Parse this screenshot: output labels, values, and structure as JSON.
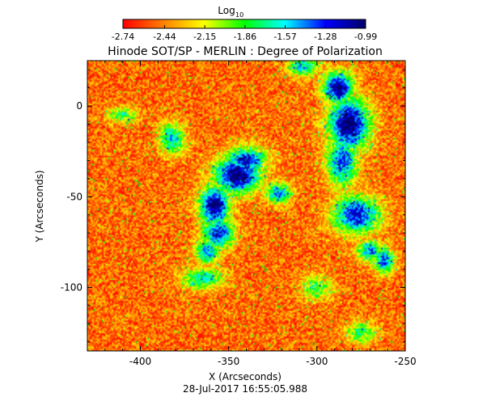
{
  "chart_data": {
    "type": "heatmap",
    "title": "Hinode SOT/SP - MERLIN : Degree of Polarization",
    "xlabel": "X (Arcseconds)",
    "ylabel": "Y (Arcseconds)",
    "xlim": [
      -430,
      -250
    ],
    "ylim": [
      -135,
      25
    ],
    "x_ticks": [
      -400,
      -350,
      -300,
      -250
    ],
    "x_tick_labels": [
      "-400",
      "-350",
      "-300",
      "-250"
    ],
    "y_ticks": [
      0,
      -50,
      -100
    ],
    "y_tick_labels": [
      "0",
      "-50",
      "-100"
    ],
    "colorbar": {
      "title_main": "Log",
      "title_sub": "10",
      "ticks": [
        -2.74,
        -2.44,
        -2.15,
        -1.86,
        -1.57,
        -1.28,
        -0.99
      ],
      "tick_labels": [
        "-2.74",
        "-2.44",
        "-2.15",
        "-1.86",
        "-1.57",
        "-1.28",
        "-0.99"
      ],
      "colormap": [
        "#ff0000",
        "#ff8000",
        "#ffff00",
        "#00ff00",
        "#00ffff",
        "#0000ff",
        "#000066"
      ]
    },
    "timestamp": "28-Jul-2017 16:55:05.988",
    "background_log": -2.74,
    "features": [
      {
        "x": -345,
        "y": -38,
        "sx": 9,
        "sy": 7,
        "level": 1.0
      },
      {
        "x": -340,
        "y": -30,
        "sx": 8,
        "sy": 5,
        "level": 0.85
      },
      {
        "x": -358,
        "y": -55,
        "sx": 6,
        "sy": 8,
        "level": 0.95
      },
      {
        "x": -356,
        "y": -70,
        "sx": 6,
        "sy": 6,
        "level": 0.8
      },
      {
        "x": -362,
        "y": -80,
        "sx": 5,
        "sy": 5,
        "level": 0.65
      },
      {
        "x": -365,
        "y": -95,
        "sx": 8,
        "sy": 4,
        "level": 0.55
      },
      {
        "x": -382,
        "y": -18,
        "sx": 5,
        "sy": 6,
        "level": 0.6
      },
      {
        "x": -288,
        "y": 10,
        "sx": 6,
        "sy": 6,
        "level": 0.95
      },
      {
        "x": -282,
        "y": -10,
        "sx": 8,
        "sy": 10,
        "level": 1.0
      },
      {
        "x": -286,
        "y": -30,
        "sx": 6,
        "sy": 10,
        "level": 0.75
      },
      {
        "x": -278,
        "y": -60,
        "sx": 9,
        "sy": 7,
        "level": 0.85
      },
      {
        "x": -270,
        "y": -80,
        "sx": 5,
        "sy": 4,
        "level": 0.7
      },
      {
        "x": -308,
        "y": 22,
        "sx": 6,
        "sy": 4,
        "level": 0.6
      },
      {
        "x": -322,
        "y": -48,
        "sx": 5,
        "sy": 4,
        "level": 0.7
      },
      {
        "x": -262,
        "y": -85,
        "sx": 4,
        "sy": 5,
        "level": 0.75
      },
      {
        "x": -410,
        "y": -5,
        "sx": 6,
        "sy": 3,
        "level": 0.45
      },
      {
        "x": -300,
        "y": -100,
        "sx": 6,
        "sy": 5,
        "level": 0.4
      },
      {
        "x": -275,
        "y": -125,
        "sx": 6,
        "sy": 4,
        "level": 0.45
      }
    ]
  }
}
